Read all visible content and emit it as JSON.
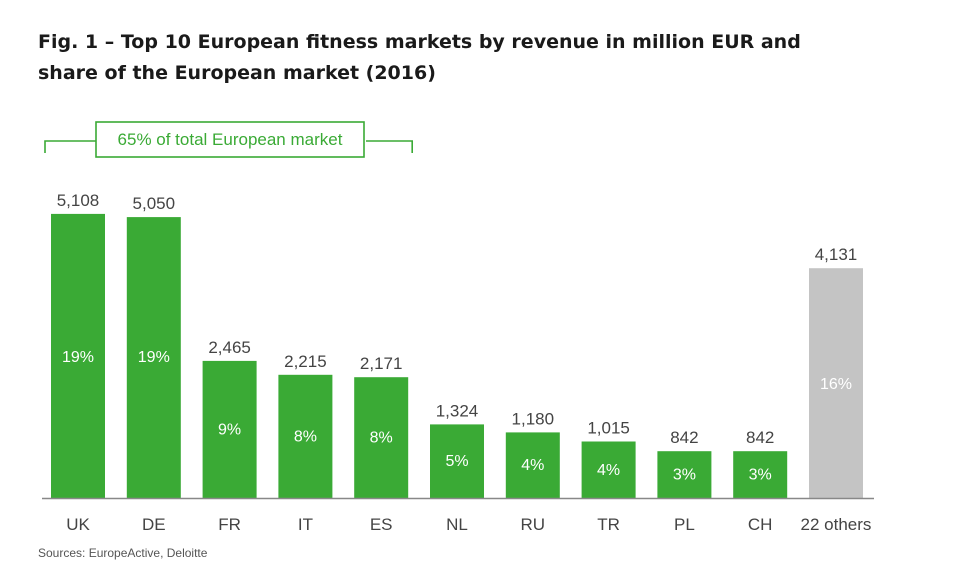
{
  "chart_data": {
    "type": "bar",
    "title_lines": [
      "Fig. 1 – Top 10 European fitness markets by revenue in million EUR and",
      "share of the European market (2016)"
    ],
    "categories": [
      "UK",
      "DE",
      "FR",
      "IT",
      "ES",
      "NL",
      "RU",
      "TR",
      "PL",
      "CH",
      "22 others"
    ],
    "values": [
      5108,
      5050,
      2465,
      2215,
      2171,
      1324,
      1180,
      1015,
      842,
      842,
      4131
    ],
    "value_labels": [
      "5,108",
      "5,050",
      "2,465",
      "2,215",
      "2,171",
      "1,324",
      "1,180",
      "1,015",
      "842",
      "842",
      "4,131"
    ],
    "shares": [
      "19%",
      "19%",
      "9%",
      "8%",
      "8%",
      "5%",
      "4%",
      "4%",
      "3%",
      "3%",
      "16%"
    ],
    "bracket": {
      "label": "65% of total European market",
      "covers_categories": [
        "UK",
        "DE",
        "FR",
        "IT",
        "ES"
      ]
    },
    "colors": {
      "top10": "#3aaa35",
      "others": "#c4c4c4",
      "axis": "#888888",
      "bracket": "#3aaa35"
    },
    "ylim": [
      0,
      5300
    ],
    "xlabel": "",
    "ylabel": "",
    "grid": false,
    "legend": "none",
    "source": "Sources: EuropeActive, Deloitte"
  }
}
